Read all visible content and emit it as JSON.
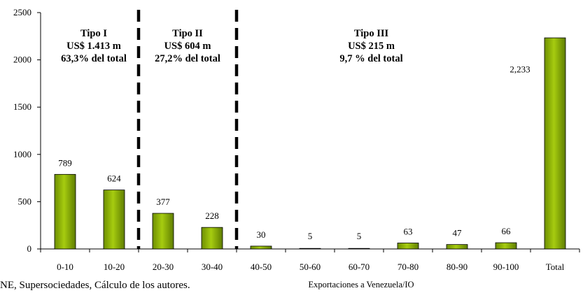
{
  "chart_data": {
    "type": "bar",
    "categories": [
      "0-10",
      "10-20",
      "20-30",
      "30-40",
      "40-50",
      "50-60",
      "60-70",
      "70-80",
      "80-90",
      "90-100",
      "Total"
    ],
    "values": [
      789,
      624,
      377,
      228,
      30,
      5,
      5,
      63,
      47,
      66,
      2233
    ],
    "data_labels": [
      "789",
      "624",
      "377",
      "228",
      "30",
      "5",
      "5",
      "63",
      "47",
      "66",
      "2,233"
    ],
    "ylim": [
      0,
      2500
    ],
    "yticks": [
      "0",
      "500",
      "1000",
      "1500",
      "2000",
      "2500"
    ],
    "xlabel": "Exportaciones a Venezuela/IO",
    "ylabel": "",
    "title": "",
    "grid": false,
    "bar_color": "#8db600",
    "region_dividers_after_category": [
      2,
      4
    ],
    "regions": [
      {
        "name": "Tipo I",
        "amount": "US$ 1.413 m",
        "share": "63,3% del total"
      },
      {
        "name": "Tipo II",
        "amount": "US$ 604 m",
        "share": "27,2% del total"
      },
      {
        "name": "Tipo III",
        "amount": "US$ 215 m",
        "share": "9,7 % del total"
      }
    ]
  },
  "source_note": "NE, Supersociedades, Cálculo de los autores."
}
